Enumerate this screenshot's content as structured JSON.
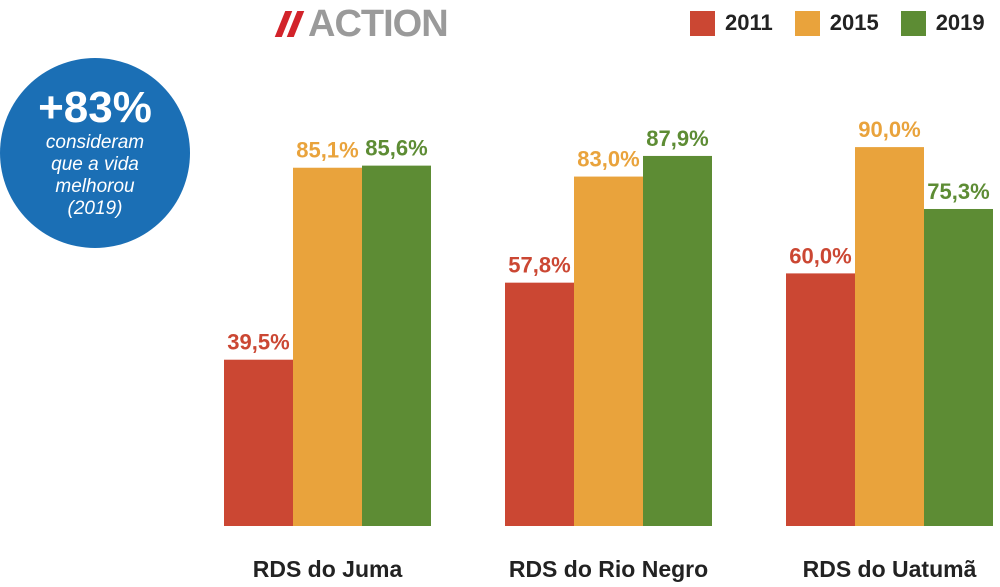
{
  "logo": {
    "text": "ACTION"
  },
  "badge": {
    "value": "+83%",
    "caption_lines": [
      "consideram",
      "que a vida",
      "melhorou",
      "(2019)"
    ]
  },
  "colors": {
    "2011": "#cb4733",
    "2015": "#e9a33c",
    "2019": "#5d8c34",
    "badge": "#1b6fb5",
    "logo_accent": "#d2232a",
    "logo_text": "#9a9a9a"
  },
  "chart_data": {
    "type": "bar",
    "categories": [
      "RDS do Juma",
      "RDS do Rio Negro",
      "RDS do Uatumã"
    ],
    "series": [
      {
        "name": "2011",
        "values": [
          39.5,
          57.8,
          60.0
        ],
        "labels": [
          "39,5%",
          "57,8%",
          "60,0%"
        ]
      },
      {
        "name": "2015",
        "values": [
          85.1,
          83.0,
          90.0
        ],
        "labels": [
          "85,1%",
          "83,0%",
          "90,0%"
        ]
      },
      {
        "name": "2019",
        "values": [
          85.6,
          87.9,
          75.3
        ],
        "labels": [
          "85,6%",
          "87,9%",
          "75,3%"
        ]
      }
    ],
    "ylim": [
      0,
      100
    ],
    "grid": false,
    "legend": "top-right"
  }
}
